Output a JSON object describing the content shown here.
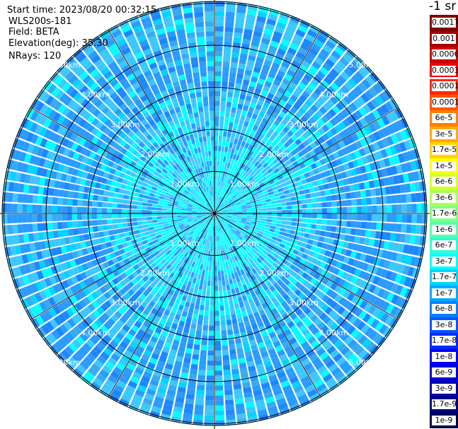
{
  "info": {
    "start_time": "Start time: 2023/08/20 00:32:15",
    "device": "WLS200s-181",
    "field": "Field: BETA",
    "elevation": "Elevation(deg): 35.30",
    "nrays": "NRays: 120"
  },
  "colorbar": {
    "unit_label": "-1 sr",
    "ticks_top_to_bottom": [
      "0.0017",
      "0.001",
      "0.0006",
      "0.0003",
      "0.00017",
      "0.0001",
      "6e-5",
      "3e-5",
      "1.7e-5",
      "1e-5",
      "6e-6",
      "3e-6",
      "1.7e-6",
      "1e-6",
      "6e-7",
      "3e-7",
      "1.7e-7",
      "1e-7",
      "6e-8",
      "3e-8",
      "1.7e-8",
      "1e-8",
      "6e-9",
      "3e-9",
      "1.7e-9",
      "1e-9"
    ],
    "colors_top_to_bottom": [
      "#7f0000",
      "#a60000",
      "#cc0000",
      "#f20000",
      "#ff2a00",
      "#ff5500",
      "#ff8000",
      "#ffaa00",
      "#ffd400",
      "#ffff00",
      "#d4ff2a",
      "#aaff55",
      "#80ff80",
      "#55ffaa",
      "#2affd4",
      "#00ffff",
      "#00d4ff",
      "#00aaff",
      "#0080ff",
      "#0055ff",
      "#002aff",
      "#0000ff",
      "#0000d4",
      "#0000aa",
      "#000080",
      "#00004d"
    ]
  },
  "ppi": {
    "nrays": 120,
    "range_rings_km": [
      "1.00km",
      "2.00km",
      "3.00km",
      "4.00km",
      "5.00km"
    ],
    "spokes_deg": [
      0,
      30,
      60,
      90,
      120,
      150,
      180,
      210,
      240,
      270,
      300,
      330
    ],
    "palette_near_to_far": [
      "#00ffff",
      "#3cc8ff",
      "#2a9bff",
      "#1e87ff",
      "#3aaaf0",
      "#00d4ff"
    ]
  }
}
